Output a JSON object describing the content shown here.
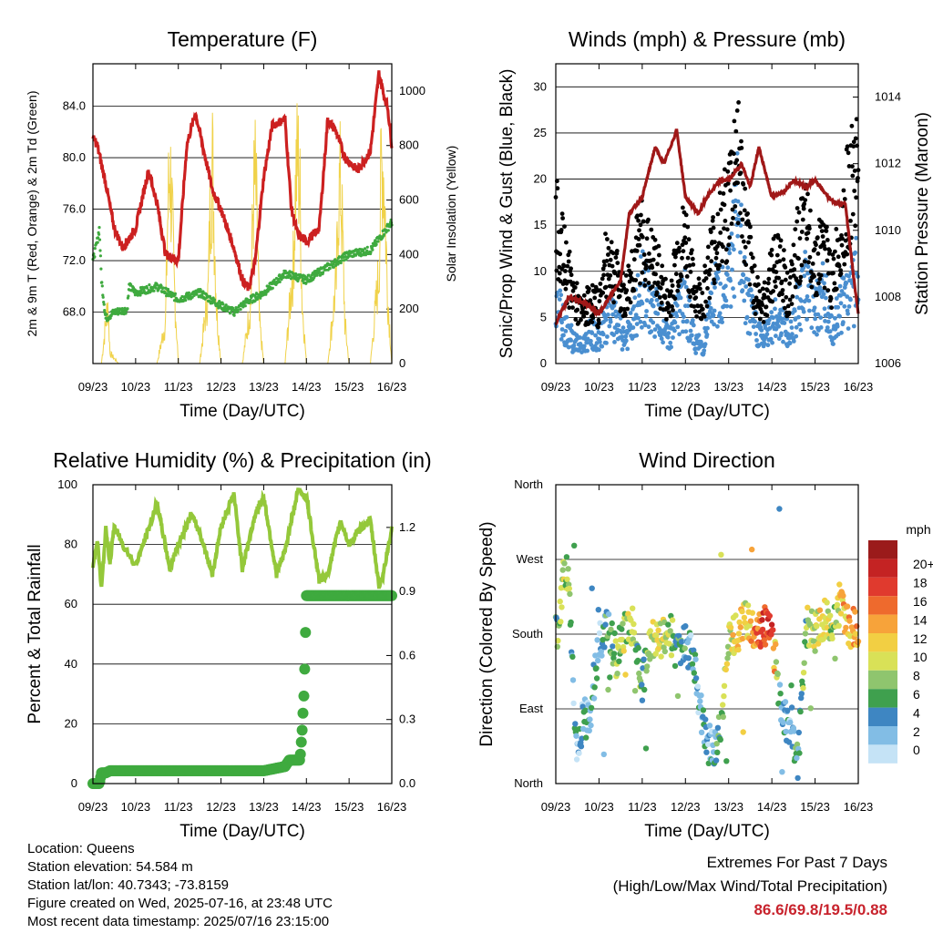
{
  "x_ticks": [
    "09/23",
    "10/23",
    "11/23",
    "12/23",
    "13/23",
    "14/23",
    "15/23",
    "16/23"
  ],
  "colors": {
    "temp": "#cc2020",
    "dewpoint": "#3faa3f",
    "solar": "#f0d24a",
    "pressure": "#a01818",
    "gust": "#000000",
    "wind": "#4a8fd0",
    "rh": "#94c83a",
    "precip": "#3faa3f"
  },
  "chart_data": [
    {
      "type": "line",
      "title": "Temperature (F)",
      "xlabel": "Time (Day/UTC)",
      "ylabel": "2m & 9m T (Red, Orange) & 2m Td (Green)",
      "ylabel_right": "Solar Insolation (Yellow)",
      "ylim": [
        64.0,
        87.3
      ],
      "ylim_right": [
        0,
        1100
      ],
      "yticks": [
        68.0,
        72.0,
        76.0,
        80.0,
        84.0
      ],
      "yticks_right": [
        0,
        200,
        400,
        600,
        800,
        1000
      ],
      "grid": true,
      "series": [
        {
          "x": [
            0,
            0.1,
            0.3,
            0.5,
            0.7,
            1.0,
            1.3,
            1.5,
            1.7,
            2.0,
            2.2,
            2.4,
            2.6,
            2.8,
            3.0,
            3.3,
            3.5,
            3.65,
            3.8,
            4.0,
            4.2,
            4.5,
            4.65,
            4.8,
            5.0,
            5.3,
            5.5,
            5.7,
            5.9,
            6.2,
            6.5,
            6.7,
            6.8,
            6.9,
            7.0
          ],
          "values": [
            81.5,
            81.0,
            78.0,
            74.5,
            73.0,
            74.5,
            79.0,
            76.5,
            72.5,
            72.0,
            81.0,
            83.5,
            80.5,
            77.5,
            76.0,
            73.0,
            70.5,
            69.8,
            72.0,
            78.5,
            82.5,
            83.0,
            76.0,
            74.0,
            73.5,
            74.5,
            83.0,
            82.0,
            80.0,
            79.0,
            80.5,
            86.6,
            85.0,
            84.0,
            81.0
          ]
        },
        {
          "x": [
            0,
            0.1,
            0.15,
            0.2,
            0.3,
            0.5,
            0.8,
            0.85,
            1.0,
            1.5,
            2.0,
            2.5,
            3.0,
            3.3,
            3.6,
            4.0,
            4.5,
            5.0,
            5.5,
            6.0,
            6.5,
            7.0
          ],
          "values": [
            72.0,
            73.5,
            74.5,
            70.5,
            67.5,
            68.0,
            68.2,
            70.0,
            69.5,
            70.0,
            69.0,
            69.5,
            68.5,
            68.0,
            68.8,
            69.5,
            71.0,
            70.5,
            71.5,
            72.5,
            72.8,
            75.0
          ]
        },
        {
          "x": [
            0,
            0.2,
            0.25,
            0.35,
            0.4,
            0.6,
            0.8,
            1.2,
            1.5,
            1.7,
            1.75,
            1.8,
            1.85,
            1.9,
            2.0,
            2.5,
            2.7,
            2.75,
            2.8,
            2.85,
            2.9,
            3.0,
            3.5,
            3.7,
            3.75,
            3.8,
            3.85,
            3.9,
            4.0,
            4.5,
            4.7,
            4.75,
            4.8,
            4.85,
            4.9,
            5.0,
            5.5,
            5.7,
            5.75,
            5.8,
            5.85,
            5.9,
            6.0,
            6.5,
            6.7,
            6.75,
            6.8,
            6.85,
            6.9,
            7.0
          ],
          "values": [
            0,
            0,
            100,
            300,
            50,
            0,
            0,
            0,
            0,
            200,
            700,
            980,
            750,
            400,
            0,
            0,
            350,
            820,
            970,
            600,
            250,
            0,
            0,
            300,
            780,
            900,
            650,
            200,
            0,
            0,
            500,
            900,
            1000,
            800,
            300,
            0,
            0,
            400,
            800,
            880,
            600,
            200,
            0,
            0,
            450,
            920,
            980,
            700,
            350,
            0
          ]
        }
      ]
    },
    {
      "type": "scatter",
      "title": "Winds (mph) & Pressure (mb)",
      "xlabel": "Time (Day/UTC)",
      "ylabel": "Sonic/Prop Wind & Gust (Blue, Black)",
      "ylabel_right": "Station Pressure (Maroon)",
      "ylim": [
        0,
        32.5
      ],
      "ylim_right": [
        1006,
        1015
      ],
      "yticks": [
        0,
        5,
        10,
        15,
        20,
        25,
        30
      ],
      "yticks_right": [
        1006,
        1008,
        1010,
        1012,
        1014
      ],
      "grid": true,
      "series": [
        {
          "x": [
            0,
            0.3,
            0.7,
            1.0,
            1.5,
            1.7,
            2.0,
            2.3,
            2.5,
            2.8,
            3.0,
            3.3,
            3.5,
            3.8,
            4.0,
            4.3,
            4.5,
            4.7,
            5.0,
            5.3,
            5.5,
            5.8,
            6.0,
            6.3,
            6.5,
            6.7,
            6.9,
            7.0
          ],
          "values": [
            1007.2,
            1008.0,
            1007.8,
            1007.5,
            1008.5,
            1010.5,
            1011.0,
            1012.5,
            1012.0,
            1013.0,
            1011.0,
            1010.5,
            1011.0,
            1011.5,
            1011.5,
            1012.0,
            1011.3,
            1012.5,
            1011.0,
            1011.2,
            1011.5,
            1011.3,
            1011.5,
            1011.0,
            1010.8,
            1010.8,
            1008.5,
            1007.5
          ]
        },
        {
          "x": [
            0,
            0.2,
            0.4,
            0.6,
            0.8,
            1.0,
            1.2,
            1.4,
            1.6,
            1.8,
            2.0,
            2.2,
            2.4,
            2.6,
            2.8,
            3.0,
            3.2,
            3.4,
            3.6,
            3.8,
            4.0,
            4.2,
            4.4,
            4.6,
            4.8,
            5.0,
            5.2,
            5.4,
            5.6,
            5.8,
            6.0,
            6.2,
            6.4,
            6.6,
            6.8,
            7.0
          ],
          "values": [
            18,
            13,
            9,
            6,
            8,
            7,
            14,
            11,
            8,
            13,
            16,
            13,
            11,
            7,
            13,
            16,
            9,
            8,
            14,
            17,
            20,
            28,
            16,
            10,
            7,
            12,
            13,
            8,
            15,
            17,
            13,
            15,
            10,
            17,
            22,
            25
          ]
        },
        {
          "x": [
            0,
            0.2,
            0.4,
            0.6,
            0.8,
            1.0,
            1.2,
            1.4,
            1.6,
            1.8,
            2.0,
            2.2,
            2.4,
            2.6,
            2.8,
            3.0,
            3.2,
            3.4,
            3.6,
            3.8,
            4.0,
            4.2,
            4.4,
            4.6,
            4.8,
            5.0,
            5.2,
            5.4,
            5.6,
            5.8,
            6.0,
            6.2,
            6.4,
            6.6,
            6.8,
            7.0
          ],
          "values": [
            8,
            5,
            3,
            2,
            4,
            3,
            6,
            5,
            3,
            5,
            10,
            7,
            6,
            3,
            6,
            8,
            3,
            2,
            7,
            10,
            11,
            18,
            8,
            5,
            3,
            5,
            6,
            3,
            8,
            10,
            7,
            9,
            4,
            7,
            9,
            11
          ]
        }
      ]
    },
    {
      "type": "line",
      "title": "Relative Humidity (%) & Precipitation (in)",
      "xlabel": "Time (Day/UTC)",
      "ylabel": "Percent & Total Rainfall",
      "ylim": [
        0,
        100
      ],
      "ylim_right": [
        0,
        1.4
      ],
      "yticks": [
        0,
        20,
        40,
        60,
        80,
        100
      ],
      "yticks_right": [
        "0.0",
        "0.3",
        "0.6",
        "0.9",
        "1.2"
      ],
      "grid": true,
      "series": [
        {
          "x": [
            0,
            0.1,
            0.2,
            0.3,
            0.4,
            0.5,
            0.7,
            1.0,
            1.3,
            1.5,
            1.8,
            2.0,
            2.3,
            2.5,
            2.8,
            3.0,
            3.3,
            3.5,
            3.8,
            4.0,
            4.3,
            4.5,
            4.8,
            5.0,
            5.3,
            5.5,
            5.8,
            6.0,
            6.3,
            6.5,
            6.7,
            6.8,
            6.9,
            7.0
          ],
          "values": [
            72,
            82,
            65,
            85,
            74,
            86,
            80,
            73,
            85,
            94,
            72,
            80,
            90,
            84,
            70,
            86,
            97,
            72,
            90,
            96,
            70,
            78,
            98,
            96,
            68,
            70,
            88,
            80,
            86,
            88,
            66,
            70,
            78,
            85
          ]
        },
        {
          "x": [
            0,
            0.05,
            0.1,
            0.15,
            0.2,
            0.3,
            0.4,
            0.5,
            0.6,
            0.8,
            1.0,
            1.5,
            2.0,
            2.5,
            3.0,
            3.5,
            3.7,
            3.8,
            4.0,
            4.5,
            4.6,
            4.7,
            4.75,
            4.8,
            4.85,
            4.9,
            4.95,
            5.0,
            5.5,
            6.0,
            6.5,
            7.0
          ],
          "values": [
            0.0,
            0.0,
            0.0,
            0.0,
            0.05,
            0.05,
            0.06,
            0.06,
            0.06,
            0.06,
            0.06,
            0.06,
            0.06,
            0.06,
            0.06,
            0.06,
            0.06,
            0.06,
            0.06,
            0.08,
            0.11,
            0.11,
            0.11,
            0.11,
            0.11,
            0.25,
            0.45,
            0.88,
            0.88,
            0.88,
            0.88,
            0.88
          ]
        }
      ]
    },
    {
      "type": "scatter",
      "title": "Wind Direction",
      "xlabel": "Time (Day/UTC)",
      "ylabel": "Direction (Colored By Speed)",
      "ylim": [
        0,
        360
      ],
      "yticks": [
        "North",
        "East",
        "South",
        "West",
        "North"
      ],
      "grid": true,
      "legend": {
        "title": "mph",
        "placement": "right",
        "labels": [
          "20+",
          "18",
          "16",
          "14",
          "12",
          "10",
          "8",
          "6",
          "4",
          "2",
          "0"
        ],
        "colors": [
          "#9b1b1b",
          "#c42323",
          "#e03a2e",
          "#ee6a2d",
          "#f7a33a",
          "#f2cf43",
          "#d9e157",
          "#8fc56e",
          "#3fa04e",
          "#3e86c2",
          "#82bde5",
          "#c5e3f6"
        ]
      },
      "series": [
        {
          "x": [
            0,
            0.1,
            0.2,
            0.3,
            0.4,
            0.5,
            0.6,
            0.8,
            1.0,
            1.2,
            1.4,
            1.6,
            1.8,
            2.0,
            2.2,
            2.4,
            2.6,
            2.8,
            3.0,
            3.2,
            3.4,
            3.6,
            3.8,
            4.0,
            4.2,
            4.4,
            4.6,
            4.8,
            5.0,
            5.2,
            5.4,
            5.6,
            5.8,
            6.0,
            6.2,
            6.4,
            6.6,
            6.8,
            7.0
          ],
          "speed": [
            6,
            8,
            10,
            8,
            4,
            2,
            3,
            4,
            3,
            5,
            8,
            9,
            8,
            6,
            9,
            11,
            9,
            6,
            5,
            3,
            4,
            3,
            7,
            10,
            12,
            11,
            15,
            17,
            18,
            4,
            3,
            5,
            8,
            10,
            12,
            8,
            12,
            13,
            14
          ],
          "values": [
            180,
            200,
            260,
            245,
            120,
            40,
            70,
            90,
            170,
            190,
            150,
            185,
            190,
            120,
            175,
            170,
            185,
            160,
            170,
            145,
            70,
            40,
            60,
            175,
            180,
            200,
            185,
            190,
            180,
            100,
            60,
            30,
            190,
            180,
            200,
            195,
            220,
            190,
            185
          ]
        }
      ]
    }
  ],
  "info": {
    "location": "Location: Queens",
    "elevation": "Station elevation: 54.584 m",
    "latlon": "Station lat/lon: 40.7343; -73.8159",
    "created": "Figure created on Wed, 2025-07-16, at 23:48 UTC",
    "recent": "Most recent data timestamp: 2025/07/16 23:15:00"
  },
  "extremes": {
    "title": "Extremes For Past 7 Days",
    "subtitle": "(High/Low/Max Wind/Total Precipitation)",
    "values": "86.6/69.8/19.5/0.88"
  }
}
